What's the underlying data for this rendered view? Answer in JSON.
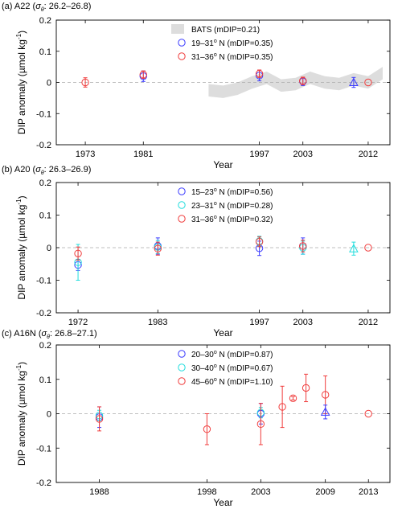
{
  "chart_data": [
    {
      "type": "scatter",
      "panel_label": "(a) A22 (",
      "panel_sigma": "σ",
      "panel_sub": "θ",
      "panel_range": ": 26.2–26.8)",
      "xlabel": "Year",
      "ylabel": "DIP anomaly (µmol kg",
      "ylabel_sup": "-1",
      "ylabel_end": ")",
      "xlim": [
        1969,
        2015
      ],
      "ylim": [
        -0.2,
        0.2
      ],
      "xticks": [
        1973,
        1981,
        1997,
        2003,
        2012
      ],
      "yticks": [
        -0.2,
        -0.1,
        0,
        0.1,
        0.2
      ],
      "ytick_labels": [
        "-0.2",
        "-0.1",
        "0",
        "0.1",
        "0.2"
      ],
      "grid": false,
      "zero_line": true,
      "legend_position": "top-center",
      "bats_band": {
        "label": "BATS (mDIP=0.21)",
        "color": "#dddddd",
        "x": [
          1990,
          1992,
          1994,
          1996,
          1998,
          2000,
          2002,
          2004,
          2006,
          2008,
          2010,
          2012,
          2014
        ],
        "y": [
          -0.025,
          -0.03,
          -0.02,
          0.0,
          0.015,
          -0.01,
          -0.005,
          0.015,
          0.0,
          -0.005,
          0.01,
          0.0,
          0.03
        ],
        "half_width": 0.02
      },
      "series": [
        {
          "name": "19–31° N (mDIP=0.35)",
          "name_main": "19–31",
          "name_sup": "o",
          "name_rest": " N (mDIP=0.35)",
          "color": "#3b3bff",
          "marker": "circle",
          "points": [
            {
              "x": 1981,
              "y": 0.02,
              "err": 0.017
            },
            {
              "x": 1997,
              "y": 0.022,
              "err": 0.017
            },
            {
              "x": 2003,
              "y": 0.003,
              "err": 0.013
            }
          ]
        },
        {
          "name": "31–36° N (mDIP=0.35)",
          "name_main": "31–36",
          "name_sup": "o",
          "name_rest": " N (mDIP=0.35)",
          "color": "#f03c3c",
          "marker": "circle",
          "points": [
            {
              "x": 1973,
              "y": 0.0,
              "err": 0.015
            },
            {
              "x": 1981,
              "y": 0.025,
              "err": 0.012
            },
            {
              "x": 1997,
              "y": 0.028,
              "err": 0.012
            },
            {
              "x": 2003,
              "y": 0.005,
              "err": 0.012
            },
            {
              "x": 2012,
              "y": 0.0,
              "err": 0
            }
          ]
        },
        {
          "name": "",
          "color": "#3b3bff",
          "marker": "triangle",
          "points": [
            {
              "x": 2010,
              "y": 0.0,
              "err": 0.016
            }
          ]
        }
      ]
    },
    {
      "type": "scatter",
      "panel_label": "(b) A20 (",
      "panel_sigma": "σ",
      "panel_sub": "θ",
      "panel_range": ": 26.3–26.9)",
      "xlabel": "Year",
      "ylabel": "DIP anomaly (µmol kg",
      "ylabel_sup": "-1",
      "ylabel_end": ")",
      "xlim": [
        1969,
        2015
      ],
      "ylim": [
        -0.2,
        0.2
      ],
      "xticks": [
        1972,
        1983,
        1997,
        2003,
        2012
      ],
      "yticks": [
        -0.2,
        -0.1,
        0,
        0.1,
        0.2
      ],
      "ytick_labels": [
        "-0.2",
        "-0.1",
        "0",
        "0.1",
        "0.2"
      ],
      "grid": false,
      "zero_line": true,
      "legend_position": "top-center",
      "series": [
        {
          "name": "15–23° N (mDIP=0.56)",
          "name_main": "15–23",
          "name_sup": "o",
          "name_rest": " N (mDIP=0.56)",
          "color": "#3b3bff",
          "marker": "circle",
          "points": [
            {
              "x": 1972,
              "y": -0.053,
              "err": 0.017
            },
            {
              "x": 1983,
              "y": 0.005,
              "err": 0.025
            },
            {
              "x": 1997,
              "y": -0.002,
              "err": 0.022
            },
            {
              "x": 2003,
              "y": 0.005,
              "err": 0.025
            }
          ]
        },
        {
          "name": "23–31° N (mDIP=0.28)",
          "name_main": "23–31",
          "name_sup": "o",
          "name_rest": " N (mDIP=0.28)",
          "color": "#22dddd",
          "marker": "circle",
          "points": [
            {
              "x": 1972,
              "y": -0.045,
              "err": 0.055
            },
            {
              "x": 1983,
              "y": 0.002,
              "err": 0.02
            },
            {
              "x": 1997,
              "y": 0.02,
              "err": 0.015
            },
            {
              "x": 2003,
              "y": 0.0,
              "err": 0.02
            }
          ]
        },
        {
          "name": "31–36° N (mDIP=0.32)",
          "name_main": "31–36",
          "name_sup": "o",
          "name_rest": " N (mDIP=0.32)",
          "color": "#f03c3c",
          "marker": "circle",
          "points": [
            {
              "x": 1972,
              "y": -0.018,
              "err": 0.02
            },
            {
              "x": 1983,
              "y": -0.003,
              "err": 0.02
            },
            {
              "x": 1997,
              "y": 0.018,
              "err": 0.015
            },
            {
              "x": 2003,
              "y": 0.005,
              "err": 0.018
            },
            {
              "x": 2012,
              "y": 0.0,
              "err": 0
            }
          ]
        },
        {
          "name": "",
          "color": "#22dddd",
          "marker": "triangle",
          "points": [
            {
              "x": 2010,
              "y": -0.003,
              "err": 0.02
            }
          ]
        }
      ]
    },
    {
      "type": "scatter",
      "panel_label": "(c) A16N (",
      "panel_sigma": "σ",
      "panel_sub": "θ",
      "panel_range": ": 26.8–27.1)",
      "xlabel": "Year",
      "ylabel": "DIP anomaly (µmol kg",
      "ylabel_sup": "-1",
      "ylabel_end": ")",
      "xlim": [
        1984,
        2015
      ],
      "ylim": [
        -0.2,
        0.2
      ],
      "xticks": [
        1988,
        1998,
        2003,
        2009,
        2013
      ],
      "yticks": [
        -0.2,
        -0.1,
        0,
        0.1,
        0.2
      ],
      "ytick_labels": [
        "-0.2",
        "-0.1",
        "0",
        "0.1",
        "0.2"
      ],
      "grid": false,
      "zero_line": true,
      "legend_position": "top-center",
      "series": [
        {
          "name": "20–30° N (mDIP=0.87)",
          "name_main": "20–30",
          "name_sup": "o",
          "name_rest": " N (mDIP=0.87)",
          "color": "#3b3bff",
          "marker": "circle",
          "points": [
            {
              "x": 1988,
              "y": -0.01,
              "err": 0.03
            },
            {
              "x": 2003,
              "y": 0.0,
              "err": 0.03
            }
          ]
        },
        {
          "name": "30–40° N (mDIP=0.67)",
          "name_main": "30–40",
          "name_sup": "o",
          "name_rest": " N (mDIP=0.67)",
          "color": "#22dddd",
          "marker": "circle",
          "points": [
            {
              "x": 1988,
              "y": -0.005,
              "err": 0.015
            },
            {
              "x": 2003,
              "y": 0.003,
              "err": 0.015
            }
          ]
        },
        {
          "name": "45–60° N (mDIP=1.10)",
          "name_main": "45–60",
          "name_sup": "o",
          "name_rest": " N (mDIP=1.10)",
          "color": "#f03c3c",
          "marker": "circle",
          "points": [
            {
              "x": 1988,
              "y": -0.015,
              "err": 0.035
            },
            {
              "x": 1998,
              "y": -0.045,
              "err": 0.045
            },
            {
              "x": 2003,
              "y": -0.03,
              "err": 0.06
            },
            {
              "x": 2005,
              "y": 0.02,
              "err": 0.06
            },
            {
              "x": 2006,
              "y": 0.045,
              "err": 0.005
            },
            {
              "x": 2007.2,
              "y": 0.075,
              "err": 0.04
            },
            {
              "x": 2009,
              "y": 0.055,
              "err": 0.055
            },
            {
              "x": 2013,
              "y": 0.0,
              "err": 0
            }
          ]
        },
        {
          "name": "",
          "color": "#3b3bff",
          "marker": "triangle",
          "points": [
            {
              "x": 2009,
              "y": 0.005,
              "err": 0.02
            }
          ]
        }
      ]
    }
  ]
}
